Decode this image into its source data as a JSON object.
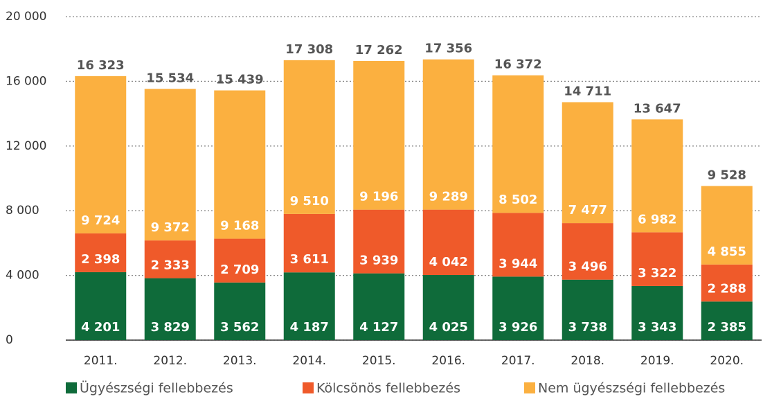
{
  "chart_data": {
    "type": "stacked_bar",
    "categories": [
      "2011.",
      "2012.",
      "2013.",
      "2014.",
      "2015.",
      "2016.",
      "2017.",
      "2018.",
      "2019.",
      "2020."
    ],
    "series": [
      {
        "name": "Ügyészségi fellebbezés",
        "color": "#0f6b3a",
        "values": [
          4201,
          3829,
          3562,
          4187,
          4127,
          4025,
          3926,
          3738,
          3343,
          2385
        ],
        "value_labels": [
          "4 201",
          "3 829",
          "3 562",
          "4 187",
          "4 127",
          "4 025",
          "3 926",
          "3 738",
          "3 343",
          "2 385"
        ]
      },
      {
        "name": "Kölcsönös fellebbezés",
        "color": "#ef5a2a",
        "values": [
          2398,
          2333,
          2709,
          3611,
          3939,
          4042,
          3944,
          3496,
          3322,
          2288
        ],
        "value_labels": [
          "2 398",
          "2 333",
          "2 709",
          "3 611",
          "3 939",
          "4 042",
          "3 944",
          "3 496",
          "3 322",
          "2 288"
        ]
      },
      {
        "name": "Nem ügyészségi fellebbezés",
        "color": "#fbb040",
        "values": [
          9724,
          9372,
          9168,
          9510,
          9196,
          9289,
          8502,
          7477,
          6982,
          4855
        ],
        "value_labels": [
          "9 724",
          "9 372",
          "9 168",
          "9 510",
          "9 196",
          "9 289",
          "8 502",
          "7 477",
          "6 982",
          "4 855"
        ]
      }
    ],
    "totals": [
      16323,
      15534,
      15439,
      17308,
      17262,
      17356,
      16372,
      14711,
      13647,
      9528
    ],
    "totals_labels": [
      "16 323",
      "15 534",
      "15 439",
      "17 308",
      "17 262",
      "17 356",
      "16 372",
      "14 711",
      "13 647",
      "9 528"
    ],
    "ylim": [
      0,
      20000
    ],
    "yticks": [
      0,
      {
        "value": 4000,
        "label": "4 000"
      },
      {
        "value": 8000,
        "label": "8 000"
      },
      {
        "value": 12000,
        "label": "12 000"
      },
      {
        "value": 16000,
        "label": "16 000"
      },
      {
        "value": 20000,
        "label": "20 000"
      }
    ],
    "grid": true
  }
}
